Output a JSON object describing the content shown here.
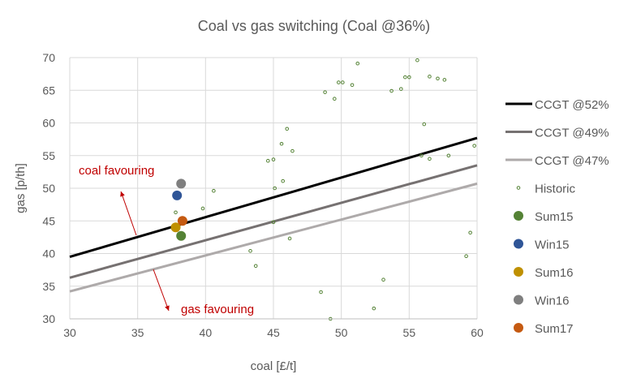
{
  "chart_data": {
    "type": "scatter",
    "title": "Coal vs gas switching (Coal @36%)",
    "xlabel": "coal [£/t]",
    "ylabel": "gas [p/th]",
    "xlim": [
      30,
      60
    ],
    "ylim": [
      30,
      70
    ],
    "xticks": [
      30,
      35,
      40,
      45,
      50,
      55,
      60
    ],
    "yticks": [
      30,
      35,
      40,
      45,
      50,
      55,
      60,
      65,
      70
    ],
    "grid": true,
    "legend": "right",
    "lines": [
      {
        "name": "CCGT @52%",
        "color": "#000000",
        "x": [
          30,
          60
        ],
        "y": [
          39.5,
          57.7
        ]
      },
      {
        "name": "CCGT @49%",
        "color": "#767171",
        "x": [
          30,
          60
        ],
        "y": [
          36.3,
          53.5
        ]
      },
      {
        "name": "CCGT @47%",
        "color": "#aeaaaa",
        "x": [
          30,
          60
        ],
        "y": [
          34.2,
          50.7
        ]
      }
    ],
    "historic": {
      "name": "Historic",
      "color": "#548235",
      "points": [
        [
          39.8,
          46.9
        ],
        [
          40.6,
          49.6
        ],
        [
          37.8,
          46.3
        ],
        [
          43.3,
          40.4
        ],
        [
          43.7,
          38.1
        ],
        [
          44.6,
          54.2
        ],
        [
          45.0,
          54.4
        ],
        [
          45.1,
          50.0
        ],
        [
          45.6,
          56.8
        ],
        [
          46.0,
          59.1
        ],
        [
          46.4,
          55.7
        ],
        [
          45.7,
          51.1
        ],
        [
          45.0,
          44.8
        ],
        [
          46.2,
          42.3
        ],
        [
          48.8,
          64.7
        ],
        [
          49.5,
          63.7
        ],
        [
          49.8,
          66.2
        ],
        [
          50.1,
          66.2
        ],
        [
          50.8,
          65.8
        ],
        [
          51.2,
          69.1
        ],
        [
          48.5,
          34.1
        ],
        [
          49.2,
          30.0
        ],
        [
          52.4,
          31.6
        ],
        [
          53.1,
          36.0
        ],
        [
          53.7,
          64.9
        ],
        [
          54.4,
          65.2
        ],
        [
          54.7,
          67.0
        ],
        [
          55.0,
          67.0
        ],
        [
          55.6,
          69.6
        ],
        [
          56.1,
          59.8
        ],
        [
          55.9,
          55.0
        ],
        [
          56.5,
          54.5
        ],
        [
          56.5,
          67.1
        ],
        [
          57.1,
          66.8
        ],
        [
          57.6,
          66.6
        ],
        [
          57.9,
          55.0
        ],
        [
          59.8,
          56.5
        ],
        [
          59.5,
          43.2
        ],
        [
          59.2,
          39.6
        ]
      ]
    },
    "seasons": [
      {
        "name": "Sum15",
        "color": "#548235",
        "x": 38.2,
        "y": 42.7
      },
      {
        "name": "Win15",
        "color": "#2f5597",
        "x": 37.9,
        "y": 48.9
      },
      {
        "name": "Sum16",
        "color": "#bf9000",
        "x": 37.8,
        "y": 44.0
      },
      {
        "name": "Win16",
        "color": "#7f7f7f",
        "x": 38.2,
        "y": 50.7
      },
      {
        "name": "Sum17",
        "color": "#c55a11",
        "x": 38.3,
        "y": 45.0
      }
    ],
    "annotations": [
      {
        "text": "coal favouring",
        "color": "#c00000"
      },
      {
        "text": "gas favouring",
        "color": "#c00000"
      }
    ]
  }
}
